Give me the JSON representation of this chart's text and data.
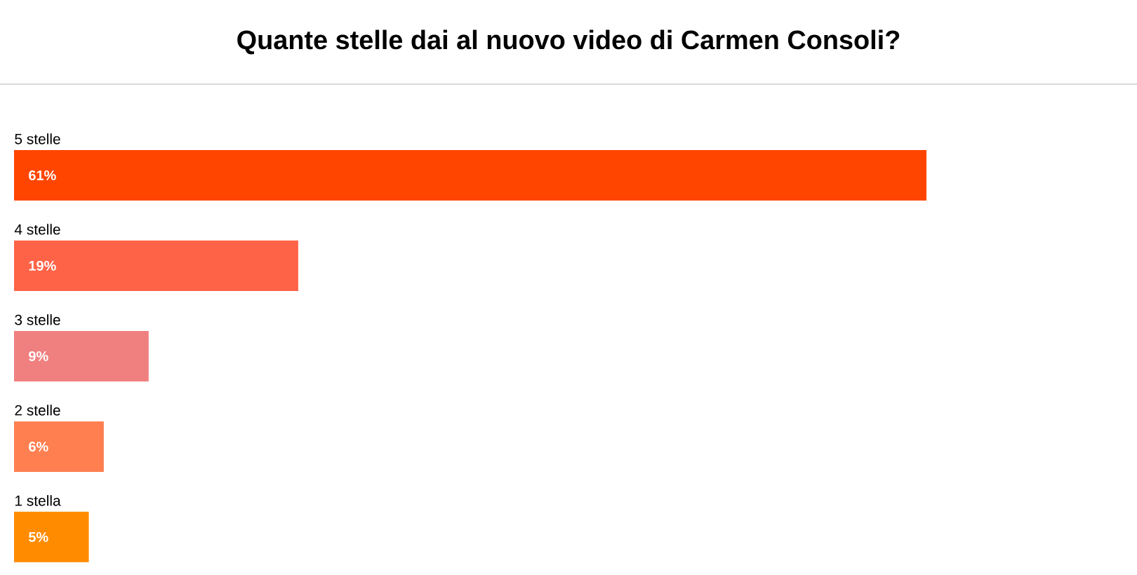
{
  "chart_data": {
    "type": "bar",
    "orientation": "horizontal",
    "title": "Quante stelle dai al nuovo video di Carmen Consoli?",
    "categories": [
      "5 stelle",
      "4 stelle",
      "3 stelle",
      "2 stelle",
      "1 stella"
    ],
    "values": [
      61,
      19,
      9,
      6,
      5
    ],
    "colors": [
      "#ff4500",
      "#ff6347",
      "#f08080",
      "#ff7f50",
      "#ff8c00"
    ],
    "value_labels": [
      "61%",
      "19%",
      "9%",
      "6%",
      "5%"
    ]
  }
}
